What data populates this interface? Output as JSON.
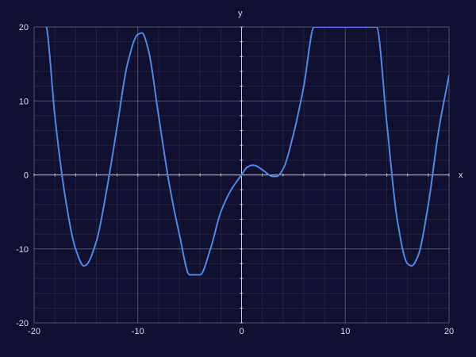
{
  "chart_data": {
    "type": "line",
    "title": "",
    "xlabel": "x",
    "ylabel": "y",
    "xlim": [
      -20,
      20
    ],
    "ylim": [
      -20,
      20
    ],
    "major_ticks": {
      "x": [
        -20,
        -10,
        0,
        10,
        20
      ],
      "y": [
        -20,
        -10,
        0,
        10,
        20
      ]
    },
    "x_tick_labels": [
      "-20",
      "-10",
      "0",
      "10",
      "20"
    ],
    "y_tick_labels": [
      "-20",
      "-10",
      "0",
      "10",
      "20"
    ],
    "minor_ticks_per_major": 5,
    "grid": true,
    "series": [
      {
        "color": "#4f86e8",
        "x": [
          -20,
          -19,
          -18.8,
          -18,
          -17,
          -16,
          -15.2,
          -15,
          -14,
          -13,
          -12,
          -11,
          -10,
          -9.6,
          -9,
          -8,
          -7,
          -6,
          -5,
          -4,
          -3,
          -2,
          -1,
          0,
          0.5,
          1,
          1.2,
          2,
          3,
          3.4,
          4,
          5,
          6,
          7,
          13,
          14,
          15,
          16,
          16.4,
          17,
          18,
          19,
          20
        ],
        "y": [
          27,
          21,
          20,
          8,
          -3,
          -10,
          -12.3,
          -12.2,
          -9,
          -2,
          6.5,
          15,
          19,
          19.2,
          17,
          8,
          -1,
          -8,
          -13.5,
          -13.5,
          -10,
          -5,
          -2,
          0,
          1,
          1.3,
          1.3,
          0.7,
          -0.2,
          -0.2,
          0.8,
          5.5,
          12,
          20,
          20,
          7,
          -6,
          -12,
          -12.3,
          -11,
          -4,
          6,
          13.5
        ]
      }
    ]
  }
}
